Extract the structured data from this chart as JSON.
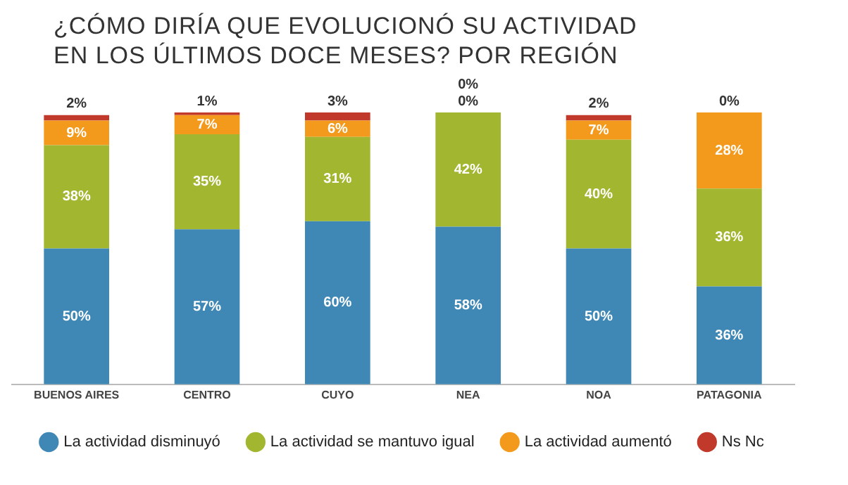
{
  "chart_data": {
    "type": "bar",
    "stacked": true,
    "title": "¿CÓMO DIRÍA QUE EVOLUCIONÓ SU ACTIVIDAD EN LOS ÚLTIMOS DOCE MESES? POR REGIÓN",
    "categories": [
      "BUENOS AIRES",
      "CENTRO",
      "CUYO",
      "NEA",
      "NOA",
      "PATAGONIA"
    ],
    "ylim": [
      0,
      100
    ],
    "tick_labels": "x",
    "grid": false,
    "legend": "bottom",
    "series": [
      {
        "name": "La actividad disminuyó",
        "color": "#3f88b5",
        "values": [
          50,
          57,
          60,
          58,
          50,
          36
        ],
        "value_labels": [
          "50%",
          "57%",
          "60%",
          "58%",
          "50%",
          "36%"
        ]
      },
      {
        "name": "La actividad se mantuvo igual",
        "color": "#a3b630",
        "values": [
          38,
          35,
          31,
          42,
          40,
          36
        ],
        "value_labels": [
          "38%",
          "35%",
          "31%",
          "42%",
          "40%",
          "36%"
        ]
      },
      {
        "name": "La actividad aumentó",
        "color": "#f39a1c",
        "values": [
          9,
          7,
          6,
          0,
          7,
          28
        ],
        "value_labels": [
          "9%",
          "7%",
          "6%",
          "0%",
          "7%",
          "28%"
        ]
      },
      {
        "name": "Ns Nc",
        "color": "#c0392b",
        "values": [
          2,
          1,
          3,
          0,
          2,
          0
        ],
        "value_labels": [
          "2%",
          "1%",
          "3%",
          "0%",
          "2%",
          "0%"
        ]
      }
    ]
  }
}
